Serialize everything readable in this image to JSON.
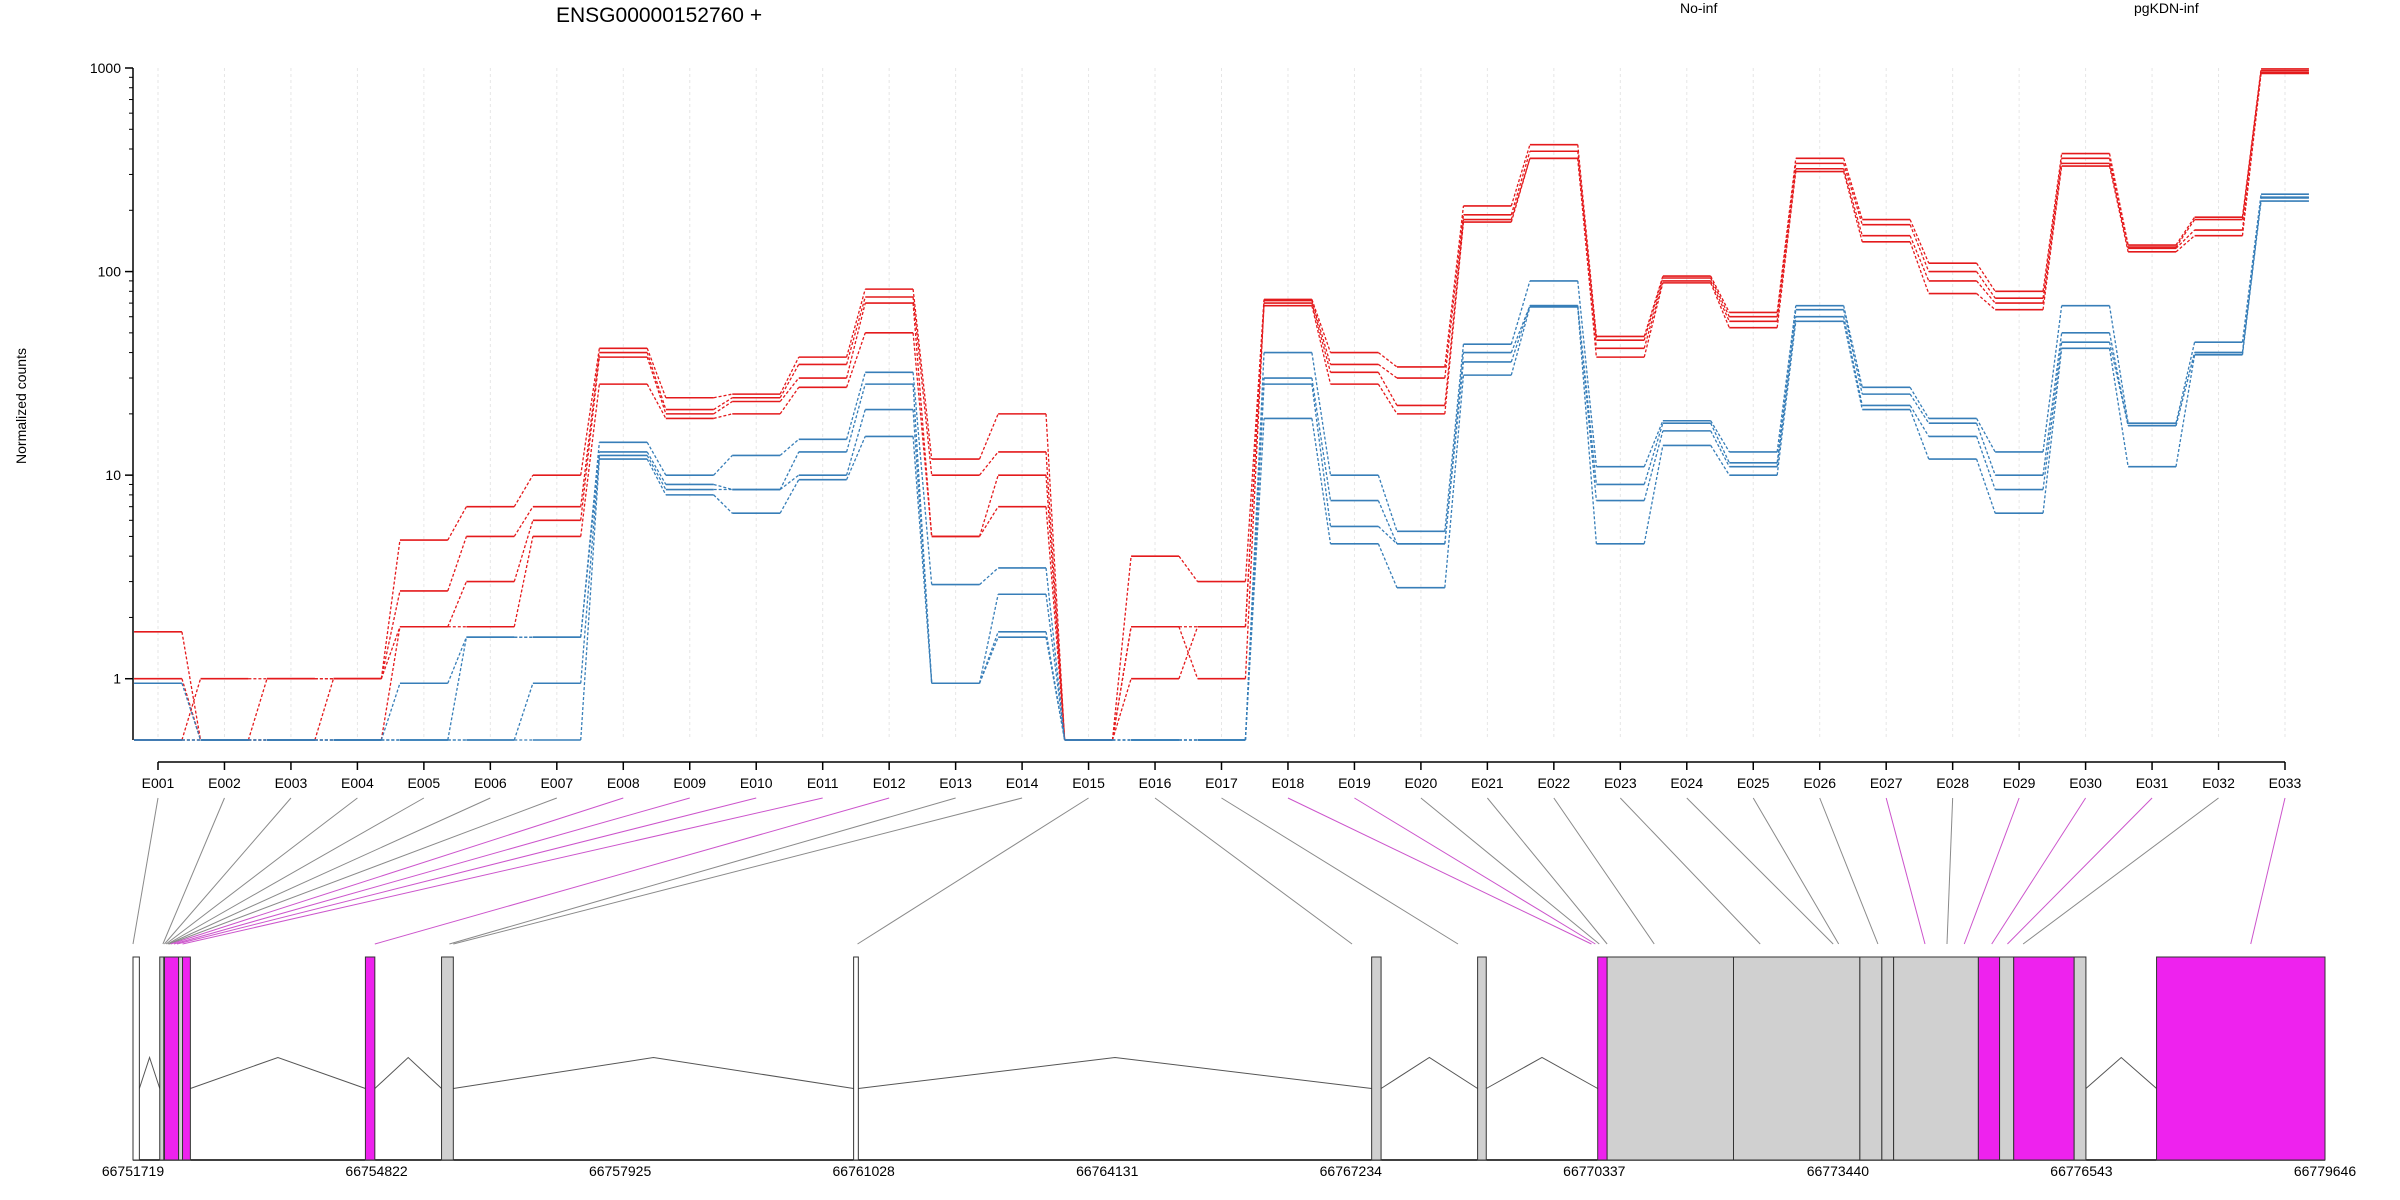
{
  "chart_data": {
    "type": "line",
    "title": "ENSG00000152760 +",
    "ylabel": "Normalized counts",
    "yscale": "log",
    "ylim": [
      0.5,
      1000
    ],
    "yticks": [
      1,
      10,
      100,
      1000
    ],
    "ytick_labels": [
      "1",
      "10",
      "100",
      "1000"
    ],
    "grid": true,
    "legend_position": "top-right",
    "categories": [
      "E001",
      "E002",
      "E003",
      "E004",
      "E005",
      "E006",
      "E007",
      "E008",
      "E009",
      "E010",
      "E011",
      "E012",
      "E013",
      "E014",
      "E015",
      "E016",
      "E017",
      "E018",
      "E019",
      "E020",
      "E021",
      "E022",
      "E023",
      "E024",
      "E025",
      "E026",
      "E027",
      "E028",
      "E029",
      "E030",
      "E031",
      "E032",
      "E033"
    ],
    "groups": [
      {
        "name": "No-inf",
        "color": "#e41a1c"
      },
      {
        "name": "pgKDN-inf",
        "color": "#377eb8"
      }
    ],
    "series": [
      {
        "group": "No-inf",
        "values": [
          1.7,
          0.5,
          1,
          1,
          4.8,
          7,
          10,
          42,
          24,
          25,
          38,
          82,
          12,
          20,
          0.5,
          4,
          3,
          73,
          40,
          34,
          210,
          420,
          48,
          95,
          63,
          360,
          180,
          110,
          80,
          380,
          135,
          185,
          990
        ]
      },
      {
        "group": "No-inf",
        "values": [
          1,
          0.5,
          0.5,
          1,
          2.7,
          5,
          7,
          40,
          21,
          24,
          35,
          75,
          10,
          13,
          0.5,
          1.8,
          1.8,
          72,
          35,
          30,
          190,
          390,
          46,
          93,
          60,
          340,
          170,
          100,
          74,
          360,
          132,
          180,
          970
        ]
      },
      {
        "group": "No-inf",
        "values": [
          0.5,
          1,
          1,
          1,
          1.8,
          3,
          6,
          38,
          20,
          23,
          30,
          70,
          5,
          10,
          0.5,
          1.8,
          1,
          70,
          32,
          22,
          180,
          360,
          42,
          90,
          57,
          320,
          150,
          90,
          70,
          340,
          130,
          160,
          950
        ]
      },
      {
        "group": "No-inf",
        "values": [
          0.5,
          0.5,
          0.5,
          0.5,
          1.8,
          1.8,
          5,
          28,
          19,
          20,
          27,
          50,
          5,
          7,
          0.5,
          1,
          1.8,
          68,
          28,
          20,
          175,
          360,
          38,
          88,
          53,
          310,
          140,
          78,
          65,
          330,
          125,
          150,
          940
        ]
      },
      {
        "group": "pgKDN-inf",
        "values": [
          0.95,
          0.5,
          0.5,
          0.5,
          0.95,
          1.6,
          1.6,
          14.5,
          10,
          12.5,
          15,
          32,
          2.9,
          3.5,
          0.5,
          0.5,
          0.5,
          40,
          10,
          5.3,
          44,
          90,
          11,
          18.5,
          13,
          68,
          27,
          19,
          13,
          68,
          18,
          45,
          240
        ]
      },
      {
        "group": "pgKDN-inf",
        "values": [
          0.5,
          0.5,
          0.5,
          0.5,
          0.5,
          1.6,
          1.6,
          13,
          9,
          8.5,
          13,
          28,
          0.95,
          2.6,
          0.5,
          0.5,
          0.5,
          30,
          7.5,
          4.6,
          40,
          68,
          9,
          18,
          11.5,
          65,
          25,
          18,
          10,
          50,
          17.5,
          40,
          232
        ]
      },
      {
        "group": "pgKDN-inf",
        "values": [
          0.5,
          0.5,
          0.5,
          0.5,
          0.5,
          0.5,
          0.95,
          12.5,
          8.5,
          8.5,
          10,
          21,
          0.95,
          1.7,
          0.5,
          0.5,
          0.5,
          28,
          5.6,
          4.6,
          36,
          68,
          7.5,
          16.5,
          11,
          60,
          22,
          15.5,
          8.5,
          45,
          17.5,
          40,
          230
        ]
      },
      {
        "group": "pgKDN-inf",
        "values": [
          0.5,
          0.5,
          0.5,
          0.5,
          0.5,
          0.5,
          0.5,
          12,
          8,
          6.5,
          9.5,
          15.5,
          0.95,
          1.6,
          0.5,
          0.5,
          0.5,
          19,
          4.6,
          2.8,
          31,
          67,
          4.6,
          14,
          10,
          57,
          21,
          12,
          6.5,
          42,
          11,
          39,
          222
        ]
      }
    ],
    "genomic_axis": {
      "labels": [
        "66751719",
        "66754822",
        "66757925",
        "66761028",
        "66764131",
        "66767234",
        "66770337",
        "66773440",
        "66776543",
        "66779646"
      ]
    },
    "exon_colors": {
      "default": "#d0d0d0",
      "highlight": "#ee22ee",
      "white": "#ffffff"
    },
    "exon_mapping": [
      {
        "id": "E001",
        "track_x": 66751719,
        "color": "default"
      },
      {
        "id": "E002",
        "track_x": 66752100,
        "color": "default"
      },
      {
        "id": "E003",
        "track_x": 66752120,
        "color": "default"
      },
      {
        "id": "E004",
        "track_x": 66752140,
        "color": "default"
      },
      {
        "id": "E005",
        "track_x": 66752160,
        "color": "default"
      },
      {
        "id": "E006",
        "track_x": 66752170,
        "color": "default"
      },
      {
        "id": "E007",
        "track_x": 66752180,
        "color": "default"
      },
      {
        "id": "E008",
        "track_x": 66752200,
        "color": "highlight"
      },
      {
        "id": "E009",
        "track_x": 66752240,
        "color": "highlight"
      },
      {
        "id": "E010",
        "track_x": 66752280,
        "color": "highlight"
      },
      {
        "id": "E011",
        "track_x": 66752350,
        "color": "highlight"
      },
      {
        "id": "E012",
        "track_x": 66754800,
        "color": "highlight"
      },
      {
        "id": "E013",
        "track_x": 66755750,
        "color": "default"
      },
      {
        "id": "E014",
        "track_x": 66755800,
        "color": "default"
      },
      {
        "id": "E015",
        "track_x": 66760950,
        "color": "default"
      },
      {
        "id": "E016",
        "track_x": 66767250,
        "color": "default"
      },
      {
        "id": "E017",
        "track_x": 66768600,
        "color": "default"
      },
      {
        "id": "E018",
        "track_x": 66770300,
        "color": "highlight"
      },
      {
        "id": "E019",
        "track_x": 66770350,
        "color": "highlight"
      },
      {
        "id": "E020",
        "track_x": 66770400,
        "color": "default"
      },
      {
        "id": "E021",
        "track_x": 66770500,
        "color": "default"
      },
      {
        "id": "E022",
        "track_x": 66771100,
        "color": "default"
      },
      {
        "id": "E023",
        "track_x": 66772450,
        "color": "default"
      },
      {
        "id": "E024",
        "track_x": 66773380,
        "color": "default"
      },
      {
        "id": "E025",
        "track_x": 66773450,
        "color": "default"
      },
      {
        "id": "E026",
        "track_x": 66773950,
        "color": "default"
      },
      {
        "id": "E027",
        "track_x": 66774550,
        "color": "highlight"
      },
      {
        "id": "E028",
        "track_x": 66774830,
        "color": "default"
      },
      {
        "id": "E029",
        "track_x": 66775050,
        "color": "highlight"
      },
      {
        "id": "E030",
        "track_x": 66775400,
        "color": "highlight"
      },
      {
        "id": "E031",
        "track_x": 66775600,
        "color": "highlight"
      },
      {
        "id": "E032",
        "track_x": 66775800,
        "color": "default"
      },
      {
        "id": "E033",
        "track_x": 66778700,
        "color": "highlight"
      }
    ],
    "exon_blocks": [
      {
        "start": 66751719,
        "end": 66751800,
        "color": "white"
      },
      {
        "start": 66752060,
        "end": 66752110,
        "color": "default"
      },
      {
        "start": 66752120,
        "end": 66752300,
        "color": "highlight"
      },
      {
        "start": 66752300,
        "end": 66752350,
        "color": "default"
      },
      {
        "start": 66752350,
        "end": 66752450,
        "color": "highlight"
      },
      {
        "start": 66754680,
        "end": 66754800,
        "color": "highlight"
      },
      {
        "start": 66755650,
        "end": 66755800,
        "color": "default"
      },
      {
        "start": 66760900,
        "end": 66760960,
        "color": "white"
      },
      {
        "start": 66767500,
        "end": 66767620,
        "color": "default"
      },
      {
        "start": 66768850,
        "end": 66768960,
        "color": "default"
      },
      {
        "start": 66770380,
        "end": 66770500,
        "color": "highlight"
      },
      {
        "start": 66770500,
        "end": 66772110,
        "color": "default"
      },
      {
        "start": 66772110,
        "end": 66773720,
        "color": "default"
      },
      {
        "start": 66773720,
        "end": 66774000,
        "color": "default"
      },
      {
        "start": 66774000,
        "end": 66774150,
        "color": "default"
      },
      {
        "start": 66774150,
        "end": 66775230,
        "color": "default"
      },
      {
        "start": 66775230,
        "end": 66775500,
        "color": "highlight"
      },
      {
        "start": 66775500,
        "end": 66775680,
        "color": "default"
      },
      {
        "start": 66775680,
        "end": 66776450,
        "color": "highlight"
      },
      {
        "start": 66776450,
        "end": 66776600,
        "color": "default"
      },
      {
        "start": 66777500,
        "end": 66779646,
        "color": "highlight"
      }
    ]
  }
}
